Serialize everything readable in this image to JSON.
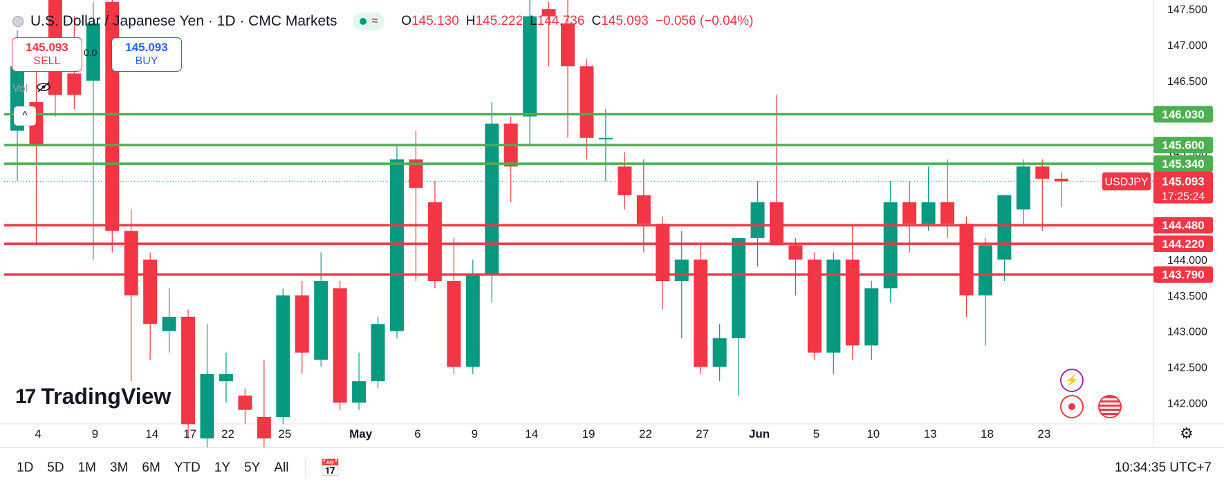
{
  "header": {
    "symbol_title": "U.S. Dollar / Japanese Yen · 1D · CMC Markets",
    "ohlc": {
      "open_label": "O",
      "open": "145.130",
      "high_label": "H",
      "high": "145.222",
      "low_label": "L",
      "low": "144.736",
      "close_label": "C",
      "close": "145.093",
      "change": "−0.056 (−0.04%)"
    },
    "status_wave": "≈"
  },
  "trade": {
    "sell_price": "145.093",
    "sell_label": "SELL",
    "buy_price": "145.093",
    "buy_label": "BUY",
    "spread": "0.0"
  },
  "indicator": {
    "label": "Vol"
  },
  "collapse_icon": "^",
  "branding": {
    "mark": "17",
    "name": "TradingView"
  },
  "toolbar": {
    "ranges": [
      "1D",
      "5D",
      "1M",
      "3M",
      "6M",
      "YTD",
      "1Y",
      "5Y",
      "All"
    ],
    "calendar_icon": "calendar-icon",
    "clock": "10:34:35 UTC+7"
  },
  "colors": {
    "up": "#089981",
    "down": "#f23645",
    "support": "#f23645",
    "resistance": "#4caf50"
  },
  "chart_data": {
    "type": "candlestick",
    "symbol_tag": "USDJPY",
    "ylim": [
      141.8,
      147.55
    ],
    "y_ticks": [
      "147.500",
      "147.000",
      "146.500",
      "146.000",
      "145.500",
      "145.000",
      "144.500",
      "144.000",
      "143.500",
      "143.000",
      "142.500",
      "142.000"
    ],
    "x_ticks": [
      "4",
      "9",
      "14",
      "17",
      "22",
      "25",
      "May",
      "6",
      "9",
      "14",
      "19",
      "22",
      "27",
      "Jun",
      "5",
      "10",
      "13",
      "18",
      "23"
    ],
    "horizontal_levels": [
      {
        "value": 146.03,
        "label": "146.030",
        "kind": "resistance"
      },
      {
        "value": 145.6,
        "label": "145.600",
        "kind": "resistance"
      },
      {
        "value": 145.34,
        "label": "145.340",
        "kind": "resistance"
      },
      {
        "value": 144.48,
        "label": "144.480",
        "kind": "support"
      },
      {
        "value": 144.22,
        "label": "144.220",
        "kind": "support"
      },
      {
        "value": 143.79,
        "label": "143.790",
        "kind": "support"
      }
    ],
    "last_price": {
      "value": 145.093,
      "label": "145.093",
      "countdown": "17:25:24"
    },
    "candles": [
      {
        "o": 145.8,
        "h": 147.2,
        "l": 145.1,
        "c": 146.7
      },
      {
        "o": 146.2,
        "h": 146.9,
        "l": 144.2,
        "c": 145.6
      },
      {
        "o": 147.7,
        "h": 147.8,
        "l": 146.0,
        "c": 146.3
      },
      {
        "o": 146.6,
        "h": 147.4,
        "l": 146.1,
        "c": 146.3
      },
      {
        "o": 146.5,
        "h": 147.6,
        "l": 144.0,
        "c": 147.3
      },
      {
        "o": 147.6,
        "h": 147.7,
        "l": 144.1,
        "c": 144.4
      },
      {
        "o": 144.4,
        "h": 144.7,
        "l": 142.3,
        "c": 143.5
      },
      {
        "o": 144.0,
        "h": 144.1,
        "l": 142.6,
        "c": 143.1
      },
      {
        "o": 143.0,
        "h": 143.6,
        "l": 142.7,
        "c": 143.2
      },
      {
        "o": 143.2,
        "h": 143.3,
        "l": 141.5,
        "c": 141.7
      },
      {
        "o": 141.5,
        "h": 143.1,
        "l": 141.0,
        "c": 142.4
      },
      {
        "o": 142.3,
        "h": 142.7,
        "l": 142.0,
        "c": 142.4
      },
      {
        "o": 142.1,
        "h": 142.2,
        "l": 141.7,
        "c": 141.9
      },
      {
        "o": 141.8,
        "h": 142.6,
        "l": 141.3,
        "c": 141.5
      },
      {
        "o": 141.8,
        "h": 143.6,
        "l": 141.7,
        "c": 143.5
      },
      {
        "o": 143.5,
        "h": 143.7,
        "l": 142.4,
        "c": 142.7
      },
      {
        "o": 142.6,
        "h": 144.1,
        "l": 142.5,
        "c": 143.7
      },
      {
        "o": 143.6,
        "h": 143.7,
        "l": 141.9,
        "c": 142.0
      },
      {
        "o": 142.0,
        "h": 142.7,
        "l": 141.9,
        "c": 142.3
      },
      {
        "o": 142.3,
        "h": 143.2,
        "l": 142.2,
        "c": 143.1
      },
      {
        "o": 143.0,
        "h": 145.6,
        "l": 142.9,
        "c": 145.4
      },
      {
        "o": 145.4,
        "h": 145.8,
        "l": 143.7,
        "c": 145.0
      },
      {
        "o": 144.8,
        "h": 145.1,
        "l": 143.6,
        "c": 143.7
      },
      {
        "o": 143.7,
        "h": 144.3,
        "l": 142.4,
        "c": 142.5
      },
      {
        "o": 142.5,
        "h": 144.0,
        "l": 142.4,
        "c": 143.8
      },
      {
        "o": 143.8,
        "h": 146.2,
        "l": 143.4,
        "c": 145.9
      },
      {
        "o": 145.9,
        "h": 146.0,
        "l": 144.8,
        "c": 145.3
      },
      {
        "o": 146.0,
        "h": 147.8,
        "l": 145.6,
        "c": 147.4
      },
      {
        "o": 147.5,
        "h": 147.6,
        "l": 146.7,
        "c": 147.4
      },
      {
        "o": 147.3,
        "h": 147.7,
        "l": 145.7,
        "c": 146.7
      },
      {
        "o": 146.7,
        "h": 146.8,
        "l": 145.4,
        "c": 145.7
      },
      {
        "o": 145.7,
        "h": 146.1,
        "l": 145.1,
        "c": 145.7
      },
      {
        "o": 145.3,
        "h": 145.5,
        "l": 144.7,
        "c": 144.9
      },
      {
        "o": 144.9,
        "h": 145.4,
        "l": 144.1,
        "c": 144.5
      },
      {
        "o": 144.5,
        "h": 144.6,
        "l": 143.3,
        "c": 143.7
      },
      {
        "o": 143.7,
        "h": 144.4,
        "l": 142.9,
        "c": 144.0
      },
      {
        "o": 144.0,
        "h": 144.2,
        "l": 142.4,
        "c": 142.5
      },
      {
        "o": 142.5,
        "h": 143.1,
        "l": 142.3,
        "c": 142.9
      },
      {
        "o": 142.9,
        "h": 144.3,
        "l": 142.1,
        "c": 144.3
      },
      {
        "o": 144.3,
        "h": 145.1,
        "l": 143.9,
        "c": 144.8
      },
      {
        "o": 144.8,
        "h": 146.3,
        "l": 144.2,
        "c": 144.2
      },
      {
        "o": 144.2,
        "h": 144.3,
        "l": 143.5,
        "c": 144.0
      },
      {
        "o": 144.0,
        "h": 144.1,
        "l": 142.6,
        "c": 142.7
      },
      {
        "o": 142.7,
        "h": 144.1,
        "l": 142.4,
        "c": 144.0
      },
      {
        "o": 144.0,
        "h": 144.5,
        "l": 142.6,
        "c": 142.8
      },
      {
        "o": 142.8,
        "h": 143.7,
        "l": 142.6,
        "c": 143.6
      },
      {
        "o": 143.6,
        "h": 145.1,
        "l": 143.4,
        "c": 144.8
      },
      {
        "o": 144.8,
        "h": 145.1,
        "l": 144.1,
        "c": 144.5
      },
      {
        "o": 144.5,
        "h": 145.3,
        "l": 144.4,
        "c": 144.8
      },
      {
        "o": 144.8,
        "h": 145.4,
        "l": 144.3,
        "c": 144.5
      },
      {
        "o": 144.5,
        "h": 144.6,
        "l": 143.2,
        "c": 143.5
      },
      {
        "o": 143.5,
        "h": 144.3,
        "l": 142.8,
        "c": 144.2
      },
      {
        "o": 144.0,
        "h": 144.9,
        "l": 143.7,
        "c": 144.9
      },
      {
        "o": 144.7,
        "h": 145.4,
        "l": 144.5,
        "c": 145.3
      },
      {
        "o": 145.3,
        "h": 145.4,
        "l": 144.4,
        "c": 145.13
      },
      {
        "o": 145.13,
        "h": 145.222,
        "l": 144.736,
        "c": 145.093
      }
    ]
  }
}
